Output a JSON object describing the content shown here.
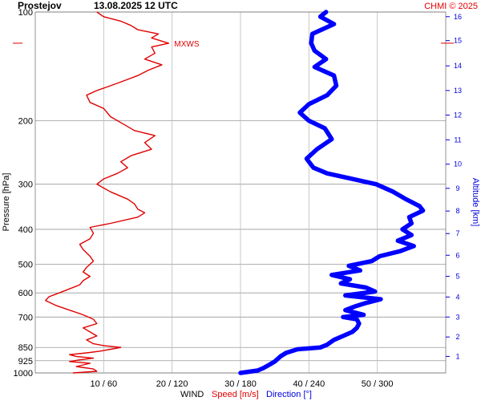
{
  "title": {
    "station": "Prostejov",
    "datetime": "13.08.2025 12 UTC",
    "credit": "CHMI © 2025"
  },
  "chart_data": {
    "type": "line",
    "y_axis": {
      "label": "Pressure [hPa]",
      "scale": "log",
      "range": [
        1000,
        100
      ],
      "ticks": [
        100,
        200,
        300,
        400,
        500,
        600,
        700,
        850,
        925,
        1000
      ],
      "tick_labels": [
        "100",
        "200",
        "300",
        "400",
        "500",
        "600",
        "700",
        "850",
        "925",
        "1000"
      ]
    },
    "altitude_axis": {
      "label": "Altitude [km]",
      "ticks": [
        1,
        2,
        3,
        4,
        5,
        6,
        7,
        8,
        9,
        10,
        11,
        12,
        13,
        14,
        15,
        16
      ],
      "tick_labels": [
        "1",
        "2",
        "3",
        "4",
        "5",
        "6",
        "7",
        "8",
        "9",
        "10",
        "11",
        "12",
        "13",
        "14",
        "15",
        "16"
      ],
      "tick_pressures": [
        900,
        795,
        700,
        616,
        540,
        472,
        411,
        356,
        308,
        264,
        226,
        193,
        165,
        141,
        120,
        103
      ]
    },
    "x_axis": {
      "grid_speed": [
        10,
        20,
        30,
        40,
        50
      ],
      "tick_labels": [
        "10 / 60",
        "20 / 120",
        "30 / 180",
        "40 / 240",
        "50 / 300"
      ],
      "speed_range": [
        0,
        60
      ],
      "direction_range": [
        0,
        360
      ]
    },
    "legend": {
      "wind": "WIND",
      "speed": "Speed [m/s]",
      "direction": "Direction [°]"
    },
    "grid": true,
    "series": [
      {
        "name": "Speed [m/s]",
        "unit": "m/s",
        "color": "#e00000",
        "points": [
          [
            1000,
            5.5
          ],
          [
            990,
            9
          ],
          [
            975,
            8.5
          ],
          [
            960,
            6
          ],
          [
            950,
            7
          ],
          [
            940,
            8
          ],
          [
            930,
            5
          ],
          [
            920,
            6.5
          ],
          [
            910,
            8.5
          ],
          [
            900,
            6
          ],
          [
            890,
            5
          ],
          [
            880,
            7.5
          ],
          [
            870,
            9.5
          ],
          [
            860,
            11
          ],
          [
            850,
            12.5
          ],
          [
            840,
            10
          ],
          [
            830,
            8.5
          ],
          [
            810,
            7.5
          ],
          [
            790,
            9
          ],
          [
            770,
            8
          ],
          [
            750,
            7
          ],
          [
            730,
            9
          ],
          [
            710,
            8.5
          ],
          [
            690,
            7
          ],
          [
            670,
            5
          ],
          [
            650,
            3
          ],
          [
            630,
            1.5
          ],
          [
            615,
            2
          ],
          [
            600,
            3.5
          ],
          [
            585,
            5
          ],
          [
            570,
            6.5
          ],
          [
            555,
            7
          ],
          [
            540,
            8
          ],
          [
            525,
            7
          ],
          [
            510,
            7.5
          ],
          [
            490,
            8.5
          ],
          [
            475,
            8
          ],
          [
            455,
            7
          ],
          [
            440,
            6.5
          ],
          [
            425,
            8
          ],
          [
            410,
            8.5
          ],
          [
            395,
            8
          ],
          [
            385,
            11
          ],
          [
            370,
            15
          ],
          [
            360,
            16
          ],
          [
            352,
            15
          ],
          [
            340,
            14.5
          ],
          [
            330,
            13.5
          ],
          [
            315,
            11
          ],
          [
            300,
            9
          ],
          [
            290,
            10
          ],
          [
            280,
            12
          ],
          [
            270,
            13.5
          ],
          [
            260,
            12.5
          ],
          [
            250,
            14
          ],
          [
            240,
            17
          ],
          [
            230,
            16
          ],
          [
            220,
            17.5
          ],
          [
            213,
            14.5
          ],
          [
            205,
            13
          ],
          [
            195,
            11
          ],
          [
            185,
            10
          ],
          [
            178,
            8
          ],
          [
            170,
            7.5
          ],
          [
            165,
            9
          ],
          [
            160,
            11
          ],
          [
            155,
            13
          ],
          [
            150,
            15
          ],
          [
            145,
            16.5
          ],
          [
            140,
            18.5
          ],
          [
            135,
            16
          ],
          [
            130,
            17.5
          ],
          [
            125,
            17
          ],
          [
            122,
            19.5
          ],
          [
            118,
            17
          ],
          [
            115,
            18
          ],
          [
            112,
            15
          ],
          [
            109,
            14
          ],
          [
            106,
            12.5
          ],
          [
            103,
            10
          ],
          [
            100,
            9
          ]
        ],
        "annotation": {
          "label": "MXWS",
          "pressure": 122,
          "speed": 19.5
        }
      },
      {
        "name": "Direction [°]",
        "unit": "deg",
        "color": "#0000ff",
        "points": [
          [
            1000,
            180
          ],
          [
            985,
            195
          ],
          [
            970,
            200
          ],
          [
            950,
            205
          ],
          [
            930,
            210
          ],
          [
            900,
            215
          ],
          [
            880,
            220
          ],
          [
            860,
            230
          ],
          [
            850,
            250
          ],
          [
            835,
            256
          ],
          [
            810,
            262
          ],
          [
            790,
            270
          ],
          [
            770,
            278
          ],
          [
            750,
            282
          ],
          [
            730,
            284
          ],
          [
            710,
            282
          ],
          [
            700,
            270
          ],
          [
            690,
            288
          ],
          [
            670,
            272
          ],
          [
            655,
            280
          ],
          [
            640,
            290
          ],
          [
            625,
            303
          ],
          [
            610,
            272
          ],
          [
            595,
            298
          ],
          [
            580,
            290
          ],
          [
            565,
            268
          ],
          [
            550,
            276
          ],
          [
            535,
            260
          ],
          [
            520,
            285
          ],
          [
            505,
            275
          ],
          [
            490,
            295
          ],
          [
            475,
            302
          ],
          [
            460,
            320
          ],
          [
            445,
            332
          ],
          [
            430,
            318
          ],
          [
            415,
            330
          ],
          [
            400,
            322
          ],
          [
            385,
            330
          ],
          [
            370,
            328
          ],
          [
            355,
            340
          ],
          [
            345,
            337
          ],
          [
            330,
            325
          ],
          [
            315,
            314
          ],
          [
            300,
            299
          ],
          [
            290,
            278
          ],
          [
            280,
            256
          ],
          [
            270,
            244
          ],
          [
            255,
            238
          ],
          [
            240,
            247
          ],
          [
            225,
            260
          ],
          [
            210,
            254
          ],
          [
            200,
            240
          ],
          [
            190,
            232
          ],
          [
            180,
            240
          ],
          [
            170,
            256
          ],
          [
            160,
            264
          ],
          [
            150,
            262
          ],
          [
            142,
            245
          ],
          [
            135,
            255
          ],
          [
            128,
            245
          ],
          [
            122,
            242
          ],
          [
            115,
            243
          ],
          [
            108,
            262
          ],
          [
            103,
            250
          ],
          [
            100,
            255
          ]
        ]
      }
    ]
  }
}
